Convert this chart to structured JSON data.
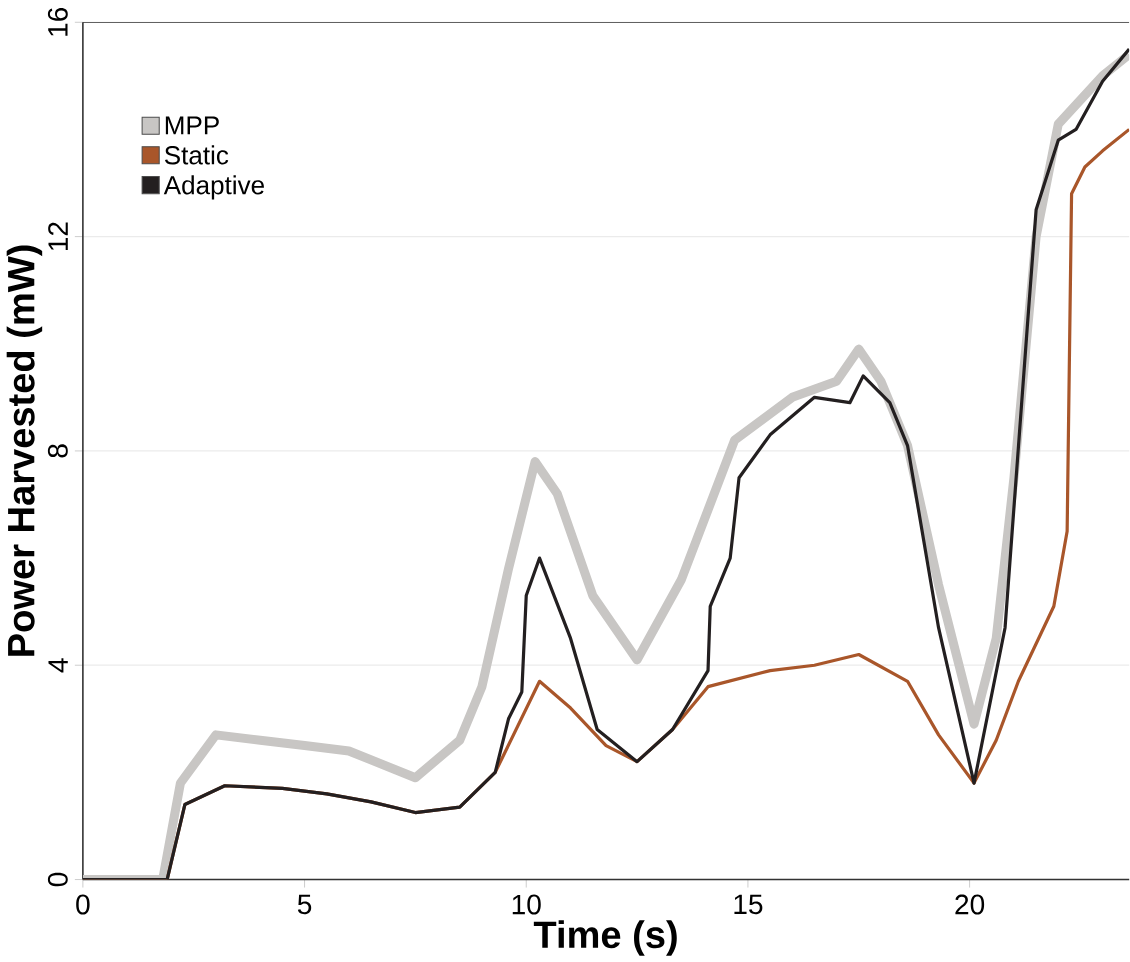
{
  "chart_data": {
    "type": "line",
    "xlabel": "Time (s)",
    "ylabel": "Power Harvested (mW)",
    "xlim": [
      0,
      23.6
    ],
    "ylim": [
      0,
      16
    ],
    "xticks": [
      0,
      5,
      10,
      15,
      20
    ],
    "yticks": [
      0,
      4,
      8,
      12,
      16
    ],
    "grid": "y",
    "legend": "top left",
    "marker": "none",
    "line_style": "solid",
    "series": [
      {
        "name": "MPP",
        "color": "#c8c6c4",
        "x": [
          0,
          1.8,
          2.2,
          3.0,
          4.0,
          5.0,
          6.0,
          7.5,
          8.5,
          9.0,
          9.6,
          10.2,
          10.7,
          11.5,
          12.5,
          13.5,
          14.7,
          16.0,
          17.0,
          17.5,
          18.0,
          18.6,
          19.3,
          20.1,
          20.6,
          21.0,
          21.5,
          22.0,
          23.0,
          23.6
        ],
        "values": [
          0,
          0,
          1.8,
          2.7,
          2.6,
          2.5,
          2.4,
          1.9,
          2.6,
          3.6,
          5.8,
          7.8,
          7.2,
          5.3,
          4.1,
          5.6,
          8.2,
          9.0,
          9.3,
          9.9,
          9.3,
          8.1,
          5.5,
          2.9,
          4.5,
          7.5,
          12.0,
          14.1,
          15.0,
          15.4
        ]
      },
      {
        "name": "Static",
        "color": "#a9562a",
        "x": [
          0,
          1.9,
          2.3,
          3.2,
          4.5,
          5.5,
          6.5,
          7.5,
          8.5,
          9.3,
          10.3,
          11.0,
          11.8,
          12.5,
          13.3,
          14.1,
          15.5,
          16.5,
          17.5,
          18.6,
          19.3,
          20.1,
          20.6,
          21.1,
          21.9,
          22.2,
          22.3,
          22.6,
          23.0,
          23.6
        ],
        "values": [
          0,
          0,
          1.4,
          1.75,
          1.7,
          1.6,
          1.45,
          1.25,
          1.35,
          2.0,
          3.7,
          3.2,
          2.5,
          2.2,
          2.8,
          3.6,
          3.9,
          4.0,
          4.2,
          3.7,
          2.7,
          1.8,
          2.6,
          3.7,
          5.1,
          6.5,
          12.8,
          13.3,
          13.6,
          14.0
        ]
      },
      {
        "name": "Adaptive",
        "color": "#231f20",
        "x": [
          0,
          1.9,
          2.3,
          3.2,
          4.5,
          5.5,
          6.5,
          7.5,
          8.5,
          9.3,
          9.6,
          9.9,
          10.0,
          10.3,
          11.0,
          11.6,
          12.5,
          13.3,
          14.1,
          14.15,
          14.6,
          14.8,
          15.5,
          16.5,
          17.3,
          17.6,
          18.2,
          18.6,
          19.3,
          20.1,
          20.8,
          21.3,
          21.5,
          22.0,
          22.4,
          23.0,
          23.6
        ],
        "values": [
          0,
          0,
          1.4,
          1.75,
          1.7,
          1.6,
          1.45,
          1.25,
          1.35,
          2.0,
          3.0,
          3.5,
          5.3,
          6.0,
          4.5,
          2.8,
          2.2,
          2.8,
          3.9,
          5.1,
          6.0,
          7.5,
          8.3,
          9.0,
          8.9,
          9.4,
          8.9,
          8.1,
          4.7,
          1.8,
          4.7,
          10.3,
          12.5,
          13.8,
          14.0,
          14.9,
          15.5
        ]
      }
    ]
  }
}
